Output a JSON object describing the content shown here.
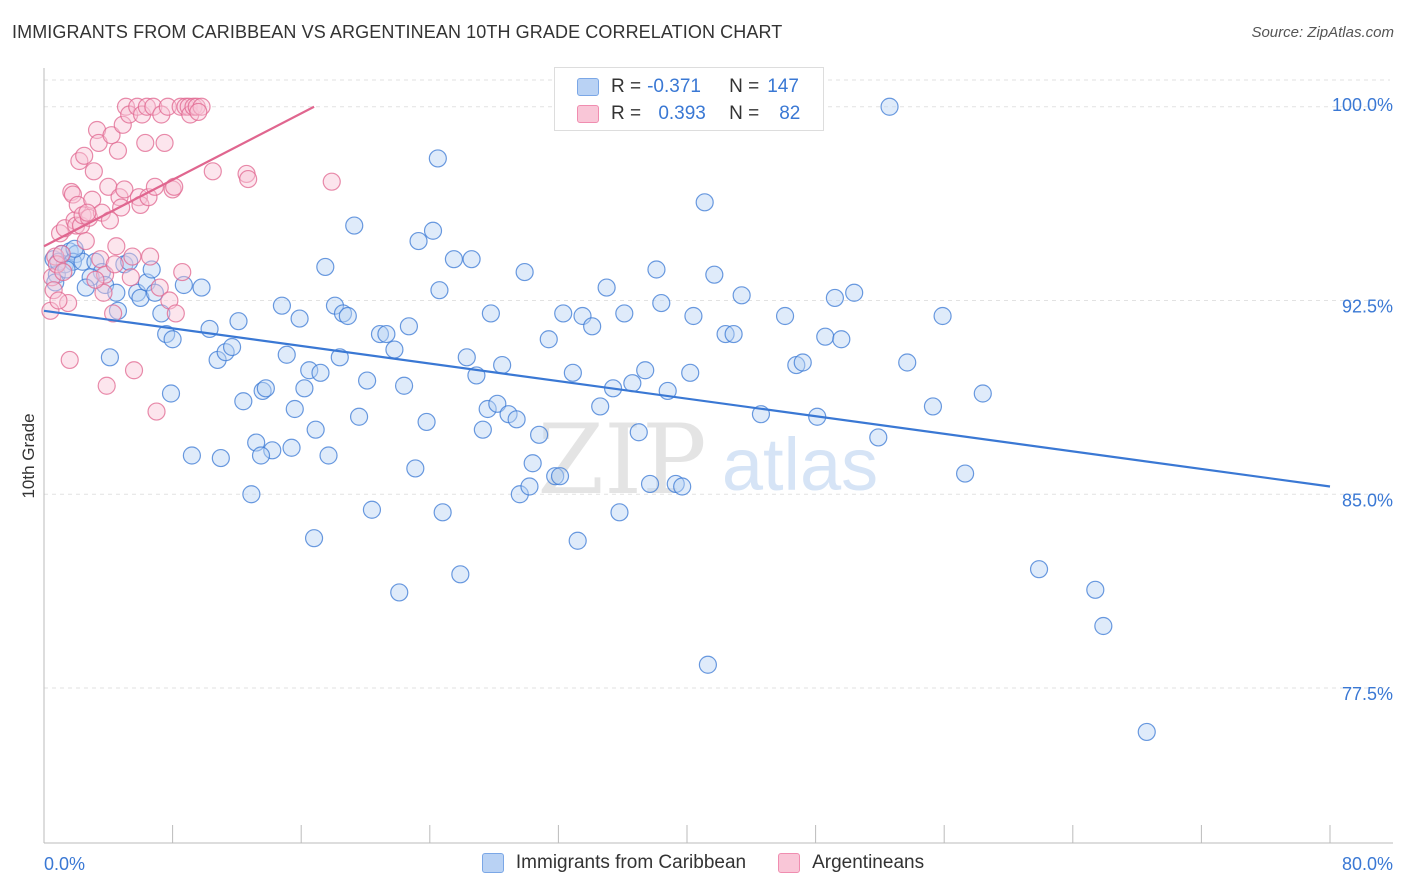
{
  "title": "IMMIGRANTS FROM CARIBBEAN VS ARGENTINEAN 10TH GRADE CORRELATION CHART",
  "source": "Source: ZipAtlas.com",
  "watermark": {
    "zip": "ZIP",
    "atlas": "atlas"
  },
  "legend": {
    "rows": [
      {
        "r_label": "R =",
        "r_value": "-0.371",
        "n_label": "N =",
        "n_value": "147",
        "color": "#7ba7e6",
        "fill": "#b9d2f4"
      },
      {
        "r_label": "R =",
        "r_value": "0.393",
        "n_label": "N =",
        "n_value": "82",
        "color": "#f08db0",
        "fill": "#f9c6d7"
      }
    ]
  },
  "chart_data": {
    "type": "scatter",
    "title": "IMMIGRANTS FROM CARIBBEAN VS ARGENTINEAN 10TH GRADE CORRELATION CHART",
    "xlabel": "",
    "ylabel": "10th Grade",
    "xlim": [
      0,
      80
    ],
    "ylim": [
      71.5,
      101.5
    ],
    "x_tick_labels": [
      "0.0%",
      "80.0%"
    ],
    "y_ticks": [
      {
        "value": 77.5,
        "label": "77.5%"
      },
      {
        "value": 85.0,
        "label": "85.0%"
      },
      {
        "value": 92.5,
        "label": "92.5%"
      },
      {
        "value": 100.0,
        "label": "100.0%"
      }
    ],
    "grid": "horizontal dashed",
    "legend_position": "bottom-center",
    "series": [
      {
        "name": "Immigrants from Caribbean",
        "color": "#3a78d4",
        "marker_fill": "#b9d2f4",
        "trend": {
          "x": [
            0,
            80
          ],
          "y": [
            92.1,
            85.3
          ]
        },
        "points": [
          [
            0.6,
            94.1
          ],
          [
            0.8,
            93.5
          ],
          [
            1.1,
            94.3
          ],
          [
            1.3,
            93.9
          ],
          [
            0.9,
            94.0
          ],
          [
            1.6,
            94.4
          ],
          [
            2.0,
            94.3
          ],
          [
            1.8,
            94.0
          ],
          [
            2.4,
            94.0
          ],
          [
            3.2,
            94.0
          ],
          [
            3.6,
            93.6
          ],
          [
            3.8,
            93.1
          ],
          [
            4.5,
            92.8
          ],
          [
            4.6,
            92.1
          ],
          [
            5.0,
            93.9
          ],
          [
            5.3,
            94.0
          ],
          [
            5.8,
            92.8
          ],
          [
            6.0,
            92.6
          ],
          [
            6.4,
            93.2
          ],
          [
            6.7,
            93.7
          ],
          [
            6.9,
            92.8
          ],
          [
            7.3,
            92.0
          ],
          [
            7.6,
            91.2
          ],
          [
            8.0,
            91.0
          ],
          [
            8.7,
            93.1
          ],
          [
            9.8,
            93.0
          ],
          [
            10.3,
            91.4
          ],
          [
            10.8,
            90.2
          ],
          [
            11.3,
            90.5
          ],
          [
            11.7,
            90.7
          ],
          [
            12.1,
            91.7
          ],
          [
            12.4,
            88.6
          ],
          [
            13.2,
            87.0
          ],
          [
            13.6,
            89.0
          ],
          [
            13.8,
            89.1
          ],
          [
            14.2,
            86.7
          ],
          [
            14.8,
            92.3
          ],
          [
            15.1,
            90.4
          ],
          [
            15.4,
            86.8
          ],
          [
            15.6,
            88.3
          ],
          [
            15.9,
            91.8
          ],
          [
            16.2,
            89.1
          ],
          [
            16.5,
            89.8
          ],
          [
            16.8,
            83.3
          ],
          [
            17.2,
            89.7
          ],
          [
            17.5,
            93.8
          ],
          [
            17.7,
            86.5
          ],
          [
            18.1,
            92.3
          ],
          [
            18.4,
            90.3
          ],
          [
            18.6,
            92.0
          ],
          [
            18.9,
            91.9
          ],
          [
            19.3,
            95.4
          ],
          [
            19.6,
            88.0
          ],
          [
            20.1,
            89.4
          ],
          [
            20.4,
            84.4
          ],
          [
            20.9,
            91.2
          ],
          [
            21.3,
            91.2
          ],
          [
            21.8,
            90.6
          ],
          [
            22.1,
            81.2
          ],
          [
            22.4,
            89.2
          ],
          [
            22.7,
            91.5
          ],
          [
            23.1,
            86.0
          ],
          [
            23.3,
            94.8
          ],
          [
            23.8,
            87.8
          ],
          [
            24.2,
            95.2
          ],
          [
            24.6,
            92.9
          ],
          [
            24.8,
            84.3
          ],
          [
            25.5,
            94.1
          ],
          [
            25.9,
            81.9
          ],
          [
            26.3,
            90.3
          ],
          [
            26.6,
            94.1
          ],
          [
            26.9,
            89.6
          ],
          [
            27.3,
            87.5
          ],
          [
            27.6,
            88.3
          ],
          [
            27.8,
            92.0
          ],
          [
            28.2,
            88.5
          ],
          [
            28.5,
            90.0
          ],
          [
            28.9,
            88.1
          ],
          [
            29.4,
            87.9
          ],
          [
            29.6,
            85.0
          ],
          [
            29.9,
            93.6
          ],
          [
            30.2,
            85.3
          ],
          [
            30.4,
            86.2
          ],
          [
            30.8,
            87.3
          ],
          [
            31.4,
            91.0
          ],
          [
            31.8,
            85.7
          ],
          [
            32.1,
            85.7
          ],
          [
            32.3,
            92.0
          ],
          [
            32.9,
            89.7
          ],
          [
            33.2,
            83.2
          ],
          [
            33.5,
            91.9
          ],
          [
            34.1,
            91.5
          ],
          [
            34.6,
            88.4
          ],
          [
            35.0,
            93.0
          ],
          [
            35.4,
            89.1
          ],
          [
            35.8,
            84.3
          ],
          [
            36.1,
            92.0
          ],
          [
            36.6,
            89.3
          ],
          [
            37.0,
            87.4
          ],
          [
            37.4,
            89.8
          ],
          [
            37.7,
            85.4
          ],
          [
            38.1,
            93.7
          ],
          [
            38.4,
            92.4
          ],
          [
            38.8,
            89.0
          ],
          [
            39.3,
            85.4
          ],
          [
            39.7,
            85.3
          ],
          [
            40.2,
            89.7
          ],
          [
            40.4,
            91.9
          ],
          [
            41.1,
            96.3
          ],
          [
            41.3,
            78.4
          ],
          [
            41.7,
            93.5
          ],
          [
            42.4,
            91.2
          ],
          [
            42.9,
            91.2
          ],
          [
            43.4,
            92.7
          ],
          [
            44.6,
            88.1
          ],
          [
            46.1,
            91.9
          ],
          [
            46.8,
            90.0
          ],
          [
            47.2,
            90.1
          ],
          [
            48.1,
            88.0
          ],
          [
            48.6,
            91.1
          ],
          [
            49.2,
            92.6
          ],
          [
            49.6,
            91.0
          ],
          [
            50.4,
            92.8
          ],
          [
            51.9,
            87.2
          ],
          [
            53.7,
            90.1
          ],
          [
            55.3,
            88.4
          ],
          [
            55.9,
            91.9
          ],
          [
            57.3,
            85.8
          ],
          [
            58.4,
            88.9
          ],
          [
            61.9,
            82.1
          ],
          [
            65.4,
            81.3
          ],
          [
            65.9,
            79.9
          ],
          [
            68.6,
            75.8
          ],
          [
            24.5,
            98.0
          ],
          [
            52.6,
            100.0
          ],
          [
            1.4,
            93.7
          ],
          [
            2.9,
            93.4
          ],
          [
            4.1,
            90.3
          ],
          [
            9.2,
            86.5
          ],
          [
            11.0,
            86.4
          ],
          [
            12.9,
            85.0
          ],
          [
            7.9,
            88.9
          ],
          [
            13.5,
            86.5
          ],
          [
            16.9,
            87.5
          ],
          [
            0.7,
            93.2
          ],
          [
            1.9,
            94.5
          ],
          [
            2.6,
            93.0
          ]
        ]
      },
      {
        "name": "Argentineans",
        "color": "#e0668f",
        "marker_fill": "#f9c6d7",
        "trend": {
          "x": [
            0,
            16.8
          ],
          "y": [
            94.6,
            100.0
          ]
        },
        "points": [
          [
            0.4,
            92.1
          ],
          [
            0.5,
            93.4
          ],
          [
            0.6,
            92.9
          ],
          [
            0.7,
            94.2
          ],
          [
            0.8,
            93.9
          ],
          [
            1.0,
            95.1
          ],
          [
            1.1,
            94.3
          ],
          [
            1.3,
            95.3
          ],
          [
            1.5,
            92.4
          ],
          [
            1.6,
            90.2
          ],
          [
            1.7,
            96.7
          ],
          [
            1.8,
            96.6
          ],
          [
            1.9,
            95.6
          ],
          [
            2.0,
            95.4
          ],
          [
            2.1,
            96.2
          ],
          [
            2.2,
            97.9
          ],
          [
            2.3,
            95.4
          ],
          [
            2.4,
            95.8
          ],
          [
            2.5,
            98.1
          ],
          [
            2.6,
            94.8
          ],
          [
            2.8,
            95.7
          ],
          [
            3.0,
            96.4
          ],
          [
            3.1,
            97.5
          ],
          [
            3.3,
            99.1
          ],
          [
            3.4,
            98.6
          ],
          [
            3.5,
            94.1
          ],
          [
            3.6,
            95.9
          ],
          [
            3.7,
            92.8
          ],
          [
            3.8,
            93.5
          ],
          [
            3.9,
            89.2
          ],
          [
            4.0,
            96.9
          ],
          [
            4.2,
            98.9
          ],
          [
            4.3,
            92.0
          ],
          [
            4.4,
            93.9
          ],
          [
            4.5,
            94.6
          ],
          [
            4.6,
            98.3
          ],
          [
            4.7,
            96.5
          ],
          [
            4.8,
            96.1
          ],
          [
            4.9,
            99.3
          ],
          [
            5.0,
            96.8
          ],
          [
            5.1,
            100.0
          ],
          [
            5.3,
            99.7
          ],
          [
            5.5,
            94.2
          ],
          [
            5.6,
            89.8
          ],
          [
            5.8,
            100.0
          ],
          [
            5.9,
            96.5
          ],
          [
            6.0,
            96.2
          ],
          [
            6.1,
            99.7
          ],
          [
            6.3,
            98.6
          ],
          [
            6.4,
            100.0
          ],
          [
            6.5,
            96.5
          ],
          [
            6.6,
            94.2
          ],
          [
            6.8,
            100.0
          ],
          [
            7.0,
            88.2
          ],
          [
            7.2,
            93.0
          ],
          [
            7.3,
            99.7
          ],
          [
            7.5,
            98.6
          ],
          [
            7.7,
            100.0
          ],
          [
            7.8,
            92.5
          ],
          [
            8.0,
            96.8
          ],
          [
            8.1,
            96.9
          ],
          [
            8.2,
            92.0
          ],
          [
            8.5,
            100.0
          ],
          [
            8.8,
            100.0
          ],
          [
            9.0,
            100.0
          ],
          [
            9.1,
            99.7
          ],
          [
            9.3,
            100.0
          ],
          [
            9.5,
            100.0
          ],
          [
            9.8,
            100.0
          ],
          [
            10.5,
            97.5
          ],
          [
            12.6,
            97.4
          ],
          [
            12.7,
            97.2
          ],
          [
            17.9,
            97.1
          ],
          [
            0.9,
            92.5
          ],
          [
            1.2,
            93.6
          ],
          [
            2.7,
            95.9
          ],
          [
            3.2,
            93.3
          ],
          [
            5.4,
            93.4
          ],
          [
            6.9,
            96.9
          ],
          [
            8.6,
            93.6
          ],
          [
            9.6,
            99.8
          ],
          [
            4.1,
            95.6
          ]
        ]
      }
    ]
  }
}
